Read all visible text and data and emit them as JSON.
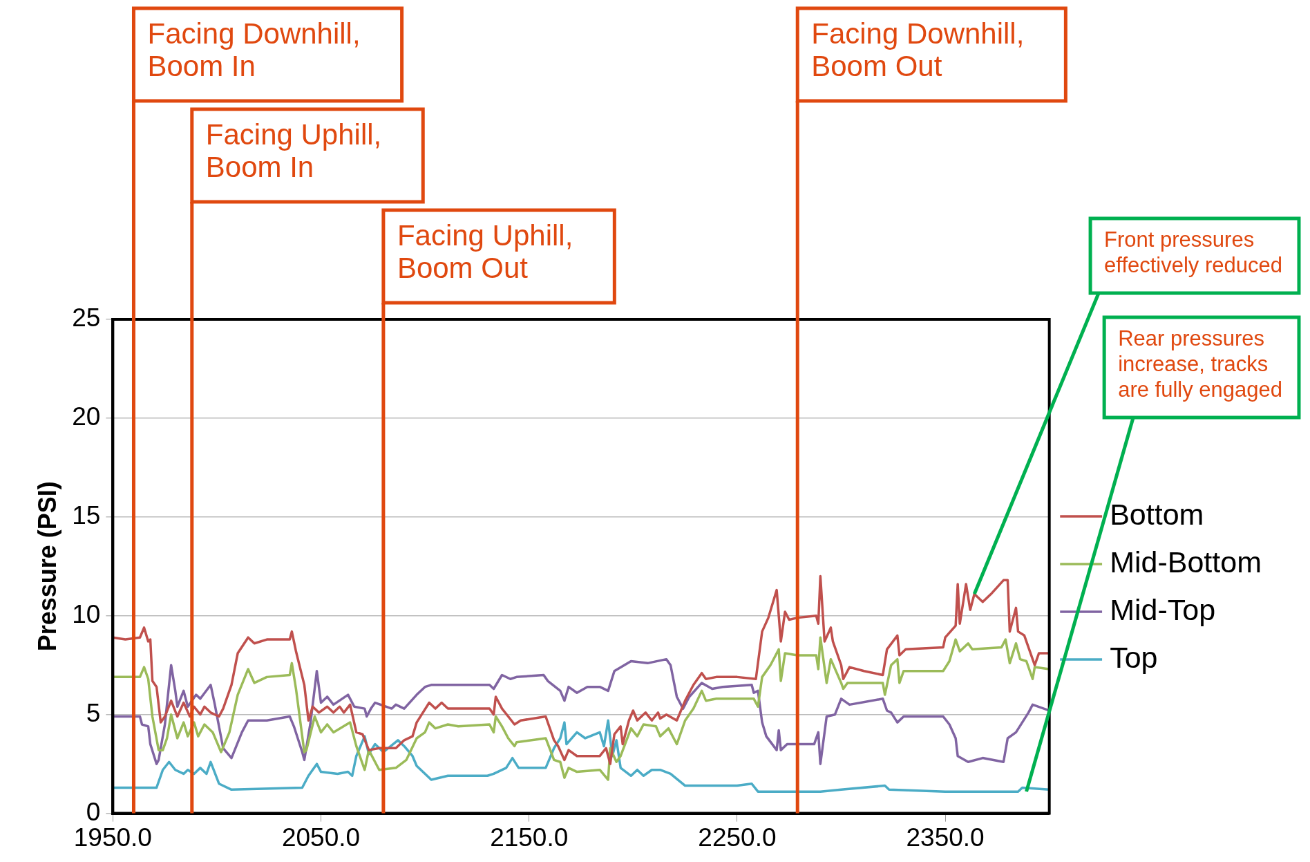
{
  "chart_data": {
    "type": "line",
    "ylabel": "Pressure (PSI)",
    "xlim": [
      1950,
      2400
    ],
    "xticks": [
      {
        "value": 1950,
        "label": "1950.0"
      },
      {
        "value": 2050,
        "label": "2050.0"
      },
      {
        "value": 2150,
        "label": "2150.0"
      },
      {
        "value": 2250,
        "label": "2250.0"
      },
      {
        "value": 2350,
        "label": "2350.0"
      }
    ],
    "ylim": [
      0,
      25
    ],
    "yticks": [
      0,
      5,
      10,
      15,
      20,
      25
    ],
    "grid": "y",
    "legend": "right",
    "line_style": "solid",
    "series": [
      {
        "name": "Bottom",
        "color": "#c0504d",
        "x": [
          1950,
          1956,
          1963,
          1965,
          1967,
          1968,
          1969,
          1971,
          1973,
          1975,
          1978,
          1981,
          1984,
          1987,
          1989,
          1992,
          1994,
          1997,
          2001,
          2003,
          2007,
          2010,
          2015,
          2018,
          2024,
          2035,
          2036,
          2038,
          2042,
          2044,
          2046,
          2049,
          2053,
          2056,
          2059,
          2061,
          2064,
          2067,
          2070,
          2073,
          2078,
          2086,
          2090,
          2094,
          2096,
          2102,
          2105,
          2108,
          2111,
          2116,
          2131,
          2133,
          2134,
          2137,
          2140,
          2143,
          2146,
          2158,
          2162,
          2164,
          2167,
          2169,
          2173,
          2184,
          2187,
          2189,
          2191,
          2194,
          2195,
          2198,
          2200,
          2202,
          2206,
          2209,
          2212,
          2213,
          2216,
          2221,
          2225,
          2229,
          2233,
          2235,
          2240,
          2250,
          2259,
          2262,
          2265,
          2269,
          2271,
          2273,
          2275,
          2279,
          2288,
          2289,
          2290,
          2292,
          2295,
          2296,
          2300,
          2301,
          2304,
          2311,
          2320,
          2322,
          2327,
          2328,
          2331,
          2349,
          2350,
          2355,
          2356,
          2357,
          2360,
          2362,
          2364,
          2368,
          2372,
          2378,
          2380,
          2381,
          2384,
          2385,
          2388,
          2391,
          2393,
          2395,
          2400
        ],
        "values": [
          8.9,
          8.8,
          8.9,
          9.4,
          8.7,
          8.8,
          6.7,
          6.4,
          4.6,
          4.9,
          5.7,
          4.9,
          5.6,
          4.9,
          5.4,
          5.0,
          5.4,
          5.1,
          4.9,
          5.3,
          6.5,
          8.1,
          8.9,
          8.6,
          8.8,
          8.8,
          9.2,
          8.2,
          6.5,
          4.7,
          5.4,
          5.1,
          5.4,
          5.1,
          5.4,
          5.1,
          5.5,
          4.1,
          4.0,
          3.2,
          3.3,
          3.3,
          3.7,
          3.9,
          4.6,
          5.6,
          5.3,
          5.6,
          5.3,
          5.3,
          5.3,
          5.0,
          5.9,
          5.3,
          4.9,
          4.5,
          4.7,
          4.9,
          3.7,
          3.4,
          2.7,
          3.2,
          2.9,
          2.9,
          3.3,
          2.5,
          4.0,
          4.4,
          3.5,
          4.7,
          5.2,
          4.7,
          5.1,
          4.7,
          5.1,
          4.8,
          5.0,
          4.7,
          5.7,
          6.5,
          7.1,
          6.8,
          6.9,
          6.9,
          6.8,
          9.2,
          9.9,
          11.3,
          8.7,
          10.2,
          9.8,
          9.9,
          10.0,
          9.6,
          12.0,
          8.7,
          9.4,
          8.7,
          7.5,
          6.8,
          7.4,
          7.2,
          7.0,
          8.3,
          9.0,
          8.0,
          8.3,
          8.4,
          8.9,
          9.5,
          11.6,
          9.6,
          11.6,
          10.3,
          11.1,
          10.7,
          11.1,
          11.8,
          11.8,
          9.2,
          10.4,
          9.2,
          9.0,
          8.1,
          7.5,
          8.1,
          8.1
        ]
      },
      {
        "name": "Mid-Bottom",
        "color": "#9bbb59",
        "x": [
          1950,
          1963,
          1965,
          1967,
          1969,
          1972,
          1974,
          1976,
          1978,
          1981,
          1984,
          1986,
          1989,
          1991,
          1994,
          1998,
          2002,
          2006,
          2010,
          2015,
          2018,
          2024,
          2035,
          2036,
          2038,
          2042,
          2043,
          2047,
          2050,
          2053,
          2056,
          2064,
          2067,
          2071,
          2073,
          2078,
          2086,
          2091,
          2096,
          2100,
          2102,
          2105,
          2111,
          2116,
          2131,
          2133,
          2134,
          2137,
          2140,
          2143,
          2144,
          2158,
          2162,
          2165,
          2167,
          2169,
          2173,
          2184,
          2188,
          2189,
          2192,
          2194,
          2199,
          2202,
          2205,
          2211,
          2213,
          2217,
          2221,
          2225,
          2229,
          2233,
          2235,
          2240,
          2250,
          2258,
          2260,
          2262,
          2266,
          2270,
          2271,
          2273,
          2279,
          2288,
          2289,
          2290,
          2293,
          2295,
          2300,
          2301,
          2303,
          2320,
          2321,
          2324,
          2327,
          2328,
          2330,
          2349,
          2352,
          2355,
          2357,
          2361,
          2363,
          2377,
          2379,
          2381,
          2384,
          2386,
          2389,
          2392,
          2393,
          2400
        ],
        "values": [
          6.9,
          6.9,
          7.4,
          6.8,
          4.9,
          3.2,
          3.2,
          3.8,
          5.0,
          3.8,
          4.6,
          3.9,
          4.6,
          3.9,
          4.5,
          4.1,
          3.1,
          4.1,
          6.0,
          7.3,
          6.6,
          6.9,
          7.0,
          7.6,
          6.3,
          3.1,
          3.2,
          4.9,
          4.1,
          4.5,
          4.1,
          4.6,
          3.4,
          2.2,
          3.2,
          2.2,
          2.3,
          2.7,
          3.8,
          4.1,
          4.6,
          4.3,
          4.5,
          4.4,
          4.5,
          4.1,
          4.9,
          4.4,
          3.8,
          3.4,
          3.6,
          3.8,
          2.7,
          2.6,
          1.8,
          2.3,
          2.1,
          2.2,
          1.7,
          3.3,
          2.6,
          2.9,
          4.3,
          3.9,
          4.5,
          4.4,
          3.9,
          4.3,
          3.5,
          4.7,
          5.3,
          6.2,
          5.7,
          5.8,
          5.8,
          5.8,
          5.4,
          6.9,
          7.5,
          8.3,
          6.7,
          8.1,
          8.0,
          8.0,
          7.3,
          8.9,
          6.6,
          7.8,
          6.6,
          6.3,
          6.6,
          6.6,
          6.0,
          7.5,
          7.8,
          6.6,
          7.2,
          7.2,
          7.7,
          8.8,
          8.2,
          8.6,
          8.3,
          8.4,
          8.8,
          7.6,
          8.6,
          7.8,
          7.7,
          6.8,
          7.4,
          7.3
        ]
      },
      {
        "name": "Mid-Top",
        "color": "#8064a2",
        "x": [
          1950,
          1963,
          1964,
          1967,
          1968,
          1971,
          1972,
          1975,
          1978,
          1980,
          1981,
          1984,
          1986,
          1990,
          1992,
          1997,
          1999,
          2001,
          2003,
          2007,
          2012,
          2015,
          2024,
          2035,
          2037,
          2041,
          2042,
          2045,
          2048,
          2050,
          2053,
          2056,
          2063,
          2066,
          2071,
          2072,
          2074,
          2076,
          2084,
          2086,
          2090,
          2096,
          2100,
          2103,
          2131,
          2133,
          2137,
          2141,
          2144,
          2157,
          2159,
          2165,
          2167,
          2169,
          2173,
          2178,
          2184,
          2188,
          2191,
          2199,
          2207,
          2216,
          2218,
          2221,
          2224,
          2227,
          2233,
          2238,
          2243,
          2257,
          2258,
          2260,
          2262,
          2264,
          2269,
          2270,
          2271,
          2274,
          2287,
          2289,
          2290,
          2292,
          2293,
          2297,
          2300,
          2304,
          2320,
          2322,
          2324,
          2327,
          2330,
          2349,
          2352,
          2355,
          2356,
          2361,
          2368,
          2378,
          2380,
          2384,
          2390,
          2392,
          2400
        ],
        "values": [
          4.9,
          4.9,
          4.5,
          4.4,
          3.5,
          2.5,
          2.7,
          4.5,
          7.5,
          6.2,
          5.4,
          6.2,
          5.4,
          6.0,
          5.8,
          6.5,
          5.5,
          4.4,
          3.3,
          2.8,
          4.1,
          4.7,
          4.7,
          4.9,
          4.4,
          3.1,
          2.7,
          4.6,
          7.2,
          5.6,
          5.9,
          5.5,
          6.0,
          5.4,
          5.3,
          4.9,
          5.3,
          5.6,
          5.3,
          5.5,
          5.3,
          6.0,
          6.4,
          6.5,
          6.5,
          6.3,
          7.0,
          6.8,
          6.9,
          7.0,
          6.7,
          6.2,
          5.7,
          6.4,
          6.1,
          6.4,
          6.4,
          6.2,
          7.2,
          7.7,
          7.6,
          7.8,
          7.5,
          5.9,
          5.3,
          5.9,
          6.6,
          6.3,
          6.4,
          6.5,
          6.1,
          6.2,
          4.6,
          3.9,
          3.2,
          4.2,
          3.2,
          3.5,
          3.5,
          4.1,
          2.5,
          4.1,
          4.9,
          5.0,
          5.8,
          5.5,
          5.8,
          5.2,
          5.1,
          4.6,
          4.9,
          4.9,
          4.5,
          3.8,
          2.9,
          2.6,
          2.8,
          2.6,
          3.8,
          4.1,
          5.1,
          5.5,
          5.2
        ]
      },
      {
        "name": "Top",
        "color": "#4bacc6",
        "x": [
          1950,
          1971,
          1974,
          1977,
          1980,
          1984,
          1986,
          1989,
          1992,
          1995,
          1997,
          2001,
          2007,
          2041,
          2044,
          2048,
          2050,
          2058,
          2063,
          2065,
          2067,
          2071,
          2073,
          2076,
          2080,
          2087,
          2090,
          2094,
          2096,
          2101,
          2103,
          2111,
          2130,
          2133,
          2139,
          2142,
          2145,
          2158,
          2160,
          2162,
          2165,
          2167,
          2168,
          2173,
          2177,
          2184,
          2186,
          2188,
          2190,
          2192,
          2194,
          2199,
          2202,
          2205,
          2209,
          2213,
          2218,
          2225,
          2250,
          2257,
          2260,
          2290,
          2300,
          2321,
          2323,
          2350,
          2385,
          2387,
          2400
        ],
        "values": [
          1.3,
          1.3,
          2.2,
          2.6,
          2.2,
          2.0,
          2.2,
          2.0,
          2.3,
          2.0,
          2.6,
          1.5,
          1.2,
          1.3,
          1.9,
          2.5,
          2.1,
          2.0,
          2.1,
          1.9,
          2.9,
          3.9,
          3.0,
          3.5,
          3.1,
          3.7,
          3.4,
          2.9,
          2.4,
          1.9,
          1.7,
          1.9,
          1.9,
          2.0,
          2.3,
          2.8,
          2.3,
          2.3,
          2.8,
          3.3,
          3.8,
          4.6,
          3.5,
          4.1,
          3.8,
          4.1,
          3.4,
          4.7,
          2.9,
          3.7,
          2.3,
          1.9,
          2.2,
          1.9,
          2.2,
          2.2,
          2.0,
          1.4,
          1.4,
          1.5,
          1.1,
          1.1,
          1.2,
          1.4,
          1.2,
          1.1,
          1.1,
          1.3,
          1.2
        ]
      }
    ],
    "ref_lines": [
      {
        "axis": "x",
        "value": 1960,
        "label": "Facing Downhill, Boom In",
        "color": "#e0480f"
      },
      {
        "axis": "x",
        "value": 1988,
        "label": "Facing Uphill, Boom In",
        "color": "#e0480f"
      },
      {
        "axis": "x",
        "value": 2080,
        "label": "Facing Uphill, Boom Out",
        "color": "#e0480f"
      },
      {
        "axis": "x",
        "value": 2279,
        "label": "Facing Downhill, Boom Out",
        "color": "#e0480f"
      }
    ],
    "annotations": [
      {
        "text": "Front pressures effectively reduced",
        "x": 2364,
        "y": 11.1
      },
      {
        "text": "Rear pressures increase, tracks are fully engaged",
        "x": 2389,
        "y": 1.1
      }
    ]
  }
}
